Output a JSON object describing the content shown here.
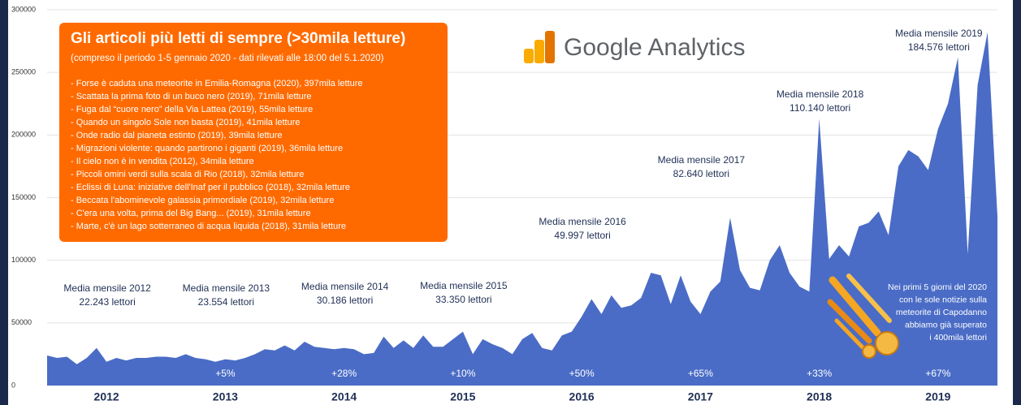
{
  "chart_data": {
    "type": "area",
    "color": "#4a6cc6",
    "categories": [
      null,
      null,
      null,
      null,
      null,
      null,
      "2012",
      null,
      null,
      null,
      null,
      null,
      null,
      null,
      null,
      null,
      null,
      null,
      "2013",
      null,
      null,
      null,
      null,
      null,
      null,
      null,
      null,
      null,
      null,
      null,
      "2014",
      null,
      null,
      null,
      null,
      null,
      null,
      null,
      null,
      null,
      null,
      null,
      "2015",
      null,
      null,
      null,
      null,
      null,
      null,
      null,
      null,
      null,
      null,
      null,
      "2016",
      null,
      null,
      null,
      null,
      null,
      null,
      null,
      null,
      null,
      null,
      null,
      "2017",
      null,
      null,
      null,
      null,
      null,
      null,
      null,
      null,
      null,
      null,
      null,
      "2018",
      null,
      null,
      null,
      null,
      null,
      null,
      null,
      null,
      null,
      null,
      null,
      "2019",
      null,
      null,
      null,
      null,
      null,
      null
    ],
    "values": [
      24000,
      22000,
      23000,
      17000,
      22000,
      30000,
      19000,
      22000,
      20000,
      22000,
      22000,
      23000,
      23000,
      22000,
      25000,
      22000,
      21000,
      19000,
      21000,
      20000,
      22000,
      25000,
      29000,
      28000,
      32000,
      28000,
      35000,
      31000,
      30000,
      29000,
      30000,
      29000,
      25000,
      26000,
      39000,
      30000,
      36000,
      30000,
      40000,
      31000,
      31000,
      37000,
      43000,
      25000,
      37000,
      33000,
      30000,
      25000,
      37000,
      42000,
      30000,
      28000,
      40000,
      43000,
      55000,
      69000,
      57000,
      72000,
      62000,
      64000,
      70000,
      90000,
      88000,
      65000,
      88000,
      67000,
      57000,
      75000,
      83000,
      134000,
      92000,
      78000,
      76000,
      100000,
      112000,
      90000,
      79000,
      75000,
      213000,
      101000,
      112000,
      103000,
      127000,
      130000,
      139000,
      120000,
      175000,
      188000,
      183000,
      172000,
      205000,
      225000,
      262000,
      105000,
      240000,
      282000,
      135000
    ],
    "ylim": [
      0,
      300000
    ],
    "yticks": [
      0,
      50000,
      100000,
      150000,
      200000,
      250000,
      300000
    ],
    "grid": true,
    "yearly_notes": [
      {
        "title": "Media mensile 2012",
        "value": "22.243 lettori"
      },
      {
        "title": "Media mensile 2013",
        "value": "23.554 lettori"
      },
      {
        "title": "Media mensile 2014",
        "value": "30.186 lettori"
      },
      {
        "title": "Media mensile 2015",
        "value": "33.350 lettori"
      },
      {
        "title": "Media mensile 2016",
        "value": "49.997 lettori"
      },
      {
        "title": "Media mensile 2017",
        "value": "82.640 lettori"
      },
      {
        "title": "Media mensile 2018",
        "value": "110.140 lettori"
      },
      {
        "title": "Media mensile 2019",
        "value": "184.576 lettori"
      }
    ],
    "growth": [
      "+5%",
      "+28%",
      "+10%",
      "+50%",
      "+65%",
      "+33%",
      "+67%"
    ],
    "box": {
      "title": "Gli articoli più letti di sempre (>30mila letture)",
      "subtitle": "(compreso il periodo 1-5 gennaio 2020 - dati rilevati alle 18:00 del 5.1.2020)",
      "items": [
        "- Forse è caduta una meteorite in Emilia-Romagna (2020), 397mila letture",
        "- Scattata la prima foto di un buco nero (2019), 71mila letture",
        "- Fuga dal “cuore nero” della Via Lattea (2019), 55mila letture",
        "- Quando un singolo Sole non basta (2019), 41mila letture",
        "- Onde radio dal pianeta estinto (2019), 39mila letture",
        "- Migrazioni violente: quando partirono i giganti (2019), 36mila letture",
        "- Il cielo non è in vendita (2012), 34mila letture",
        "- Piccoli omini verdi sulla scala di Rio (2018), 32mila letture",
        "- Eclissi di Luna: iniziative dell'Inaf per il pubblico (2018), 32mila letture",
        "- Beccata l'abominevole galassia primordiale (2019), 32mila letture",
        "- C'era una volta, prima del Big Bang... (2019), 31mila letture",
        "- Marte, c'è un lago sotterraneo di acqua liquida (2018), 31mila letture"
      ]
    },
    "logo_text": "Google Analytics",
    "note": [
      "Nei primi 5 giorni del 2020",
      "con le sole notizie sulla",
      "meteorite di Capodanno",
      "abbiamo già superato",
      "i 400mila lettori"
    ]
  }
}
